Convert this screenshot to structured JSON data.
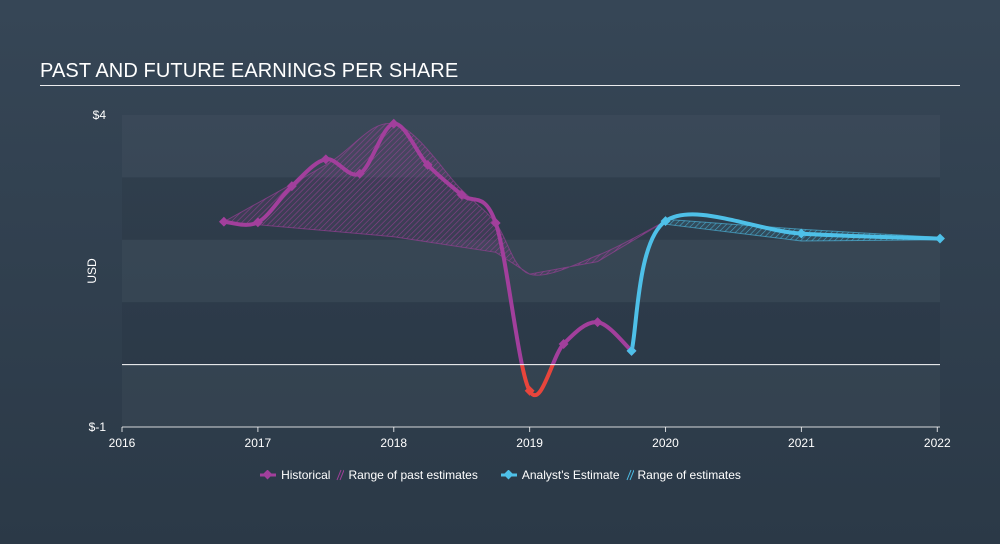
{
  "title": "PAST AND FUTURE EARNINGS PER SHARE",
  "chart_data": {
    "type": "line",
    "title": "PAST AND FUTURE EARNINGS PER SHARE",
    "ylabel": "USD",
    "xlabel": "",
    "ylim": [
      -1,
      4
    ],
    "xlim": [
      2016,
      2022.02
    ],
    "y_tick_labels": [
      "$4",
      "$-1"
    ],
    "x_tick_labels": [
      "2016",
      "2017",
      "2018",
      "2019",
      "2020",
      "2021",
      "2022"
    ],
    "grid": "horizontal bands",
    "zero_line": 0,
    "series": [
      {
        "name": "Historical",
        "color": "#a23f9c",
        "negative_color": "#e8453c",
        "points": [
          {
            "x": 2016.75,
            "y": 2.29
          },
          {
            "x": 2017.0,
            "y": 2.28
          },
          {
            "x": 2017.25,
            "y": 2.86
          },
          {
            "x": 2017.5,
            "y": 3.29
          },
          {
            "x": 2017.75,
            "y": 3.06
          },
          {
            "x": 2018.0,
            "y": 3.86
          },
          {
            "x": 2018.25,
            "y": 3.2
          },
          {
            "x": 2018.5,
            "y": 2.72
          },
          {
            "x": 2018.75,
            "y": 2.27
          },
          {
            "x": 2019.0,
            "y": -0.42
          },
          {
            "x": 2019.25,
            "y": 0.33
          },
          {
            "x": 2019.5,
            "y": 0.68
          },
          {
            "x": 2019.75,
            "y": 0.22
          }
        ]
      },
      {
        "name": "Analyst's Estimate",
        "color": "#4ec0e8",
        "points": [
          {
            "x": 2019.75,
            "y": 0.22
          },
          {
            "x": 2020.0,
            "y": 2.3
          },
          {
            "x": 2021.0,
            "y": 2.1
          },
          {
            "x": 2022.02,
            "y": 2.02
          }
        ]
      },
      {
        "name": "Range of past estimates",
        "color": "#a23f9c",
        "upper": [
          {
            "x": 2016.75,
            "y": 2.29
          },
          {
            "x": 2017.5,
            "y": 3.2
          },
          {
            "x": 2018.0,
            "y": 3.86
          },
          {
            "x": 2018.5,
            "y": 2.8
          },
          {
            "x": 2018.75,
            "y": 2.27
          },
          {
            "x": 2019.0,
            "y": 1.45
          },
          {
            "x": 2019.5,
            "y": 1.75
          },
          {
            "x": 2020.0,
            "y": 2.3
          }
        ],
        "lower": [
          {
            "x": 2016.75,
            "y": 2.29
          },
          {
            "x": 2018.0,
            "y": 2.05
          },
          {
            "x": 2018.75,
            "y": 1.8
          },
          {
            "x": 2019.0,
            "y": 1.45
          },
          {
            "x": 2019.5,
            "y": 1.65
          },
          {
            "x": 2020.0,
            "y": 2.3
          }
        ]
      },
      {
        "name": "Range of estimates",
        "color": "#4ec0e8",
        "upper": [
          {
            "x": 2020.0,
            "y": 2.33
          },
          {
            "x": 2021.0,
            "y": 2.17
          },
          {
            "x": 2022.02,
            "y": 2.04
          }
        ],
        "lower": [
          {
            "x": 2020.0,
            "y": 2.25
          },
          {
            "x": 2021.0,
            "y": 1.98
          },
          {
            "x": 2022.02,
            "y": 2.0
          }
        ]
      }
    ]
  },
  "legend": {
    "historical": "Historical",
    "past_range": "Range of past estimates",
    "analyst": "Analyst's Estimate",
    "range": "Range of estimates"
  }
}
